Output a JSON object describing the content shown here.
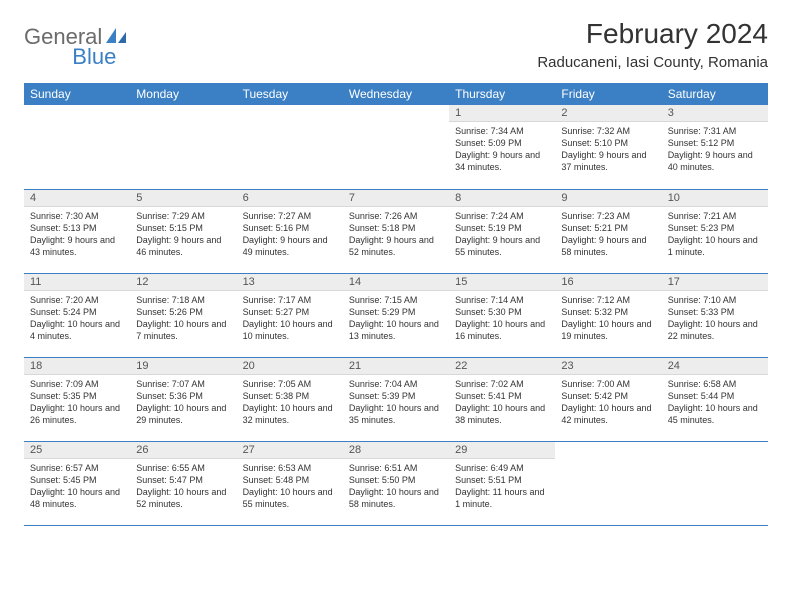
{
  "logo": {
    "part1": "General",
    "part2": "Blue"
  },
  "title": "February 2024",
  "location": "Raducaneni, Iasi County, Romania",
  "colors": {
    "header_bg": "#3b7fc4",
    "header_fg": "#ffffff",
    "daynum_bg": "#ededed",
    "page_bg": "#ffffff",
    "text": "#333333",
    "logo_grey": "#6b6b6b",
    "logo_blue": "#3b7fc4"
  },
  "day_headers": [
    "Sunday",
    "Monday",
    "Tuesday",
    "Wednesday",
    "Thursday",
    "Friday",
    "Saturday"
  ],
  "weeks": [
    [
      null,
      null,
      null,
      null,
      {
        "n": "1",
        "sr": "7:34 AM",
        "ss": "5:09 PM",
        "dl": "9 hours and 34 minutes."
      },
      {
        "n": "2",
        "sr": "7:32 AM",
        "ss": "5:10 PM",
        "dl": "9 hours and 37 minutes."
      },
      {
        "n": "3",
        "sr": "7:31 AM",
        "ss": "5:12 PM",
        "dl": "9 hours and 40 minutes."
      }
    ],
    [
      {
        "n": "4",
        "sr": "7:30 AM",
        "ss": "5:13 PM",
        "dl": "9 hours and 43 minutes."
      },
      {
        "n": "5",
        "sr": "7:29 AM",
        "ss": "5:15 PM",
        "dl": "9 hours and 46 minutes."
      },
      {
        "n": "6",
        "sr": "7:27 AM",
        "ss": "5:16 PM",
        "dl": "9 hours and 49 minutes."
      },
      {
        "n": "7",
        "sr": "7:26 AM",
        "ss": "5:18 PM",
        "dl": "9 hours and 52 minutes."
      },
      {
        "n": "8",
        "sr": "7:24 AM",
        "ss": "5:19 PM",
        "dl": "9 hours and 55 minutes."
      },
      {
        "n": "9",
        "sr": "7:23 AM",
        "ss": "5:21 PM",
        "dl": "9 hours and 58 minutes."
      },
      {
        "n": "10",
        "sr": "7:21 AM",
        "ss": "5:23 PM",
        "dl": "10 hours and 1 minute."
      }
    ],
    [
      {
        "n": "11",
        "sr": "7:20 AM",
        "ss": "5:24 PM",
        "dl": "10 hours and 4 minutes."
      },
      {
        "n": "12",
        "sr": "7:18 AM",
        "ss": "5:26 PM",
        "dl": "10 hours and 7 minutes."
      },
      {
        "n": "13",
        "sr": "7:17 AM",
        "ss": "5:27 PM",
        "dl": "10 hours and 10 minutes."
      },
      {
        "n": "14",
        "sr": "7:15 AM",
        "ss": "5:29 PM",
        "dl": "10 hours and 13 minutes."
      },
      {
        "n": "15",
        "sr": "7:14 AM",
        "ss": "5:30 PM",
        "dl": "10 hours and 16 minutes."
      },
      {
        "n": "16",
        "sr": "7:12 AM",
        "ss": "5:32 PM",
        "dl": "10 hours and 19 minutes."
      },
      {
        "n": "17",
        "sr": "7:10 AM",
        "ss": "5:33 PM",
        "dl": "10 hours and 22 minutes."
      }
    ],
    [
      {
        "n": "18",
        "sr": "7:09 AM",
        "ss": "5:35 PM",
        "dl": "10 hours and 26 minutes."
      },
      {
        "n": "19",
        "sr": "7:07 AM",
        "ss": "5:36 PM",
        "dl": "10 hours and 29 minutes."
      },
      {
        "n": "20",
        "sr": "7:05 AM",
        "ss": "5:38 PM",
        "dl": "10 hours and 32 minutes."
      },
      {
        "n": "21",
        "sr": "7:04 AM",
        "ss": "5:39 PM",
        "dl": "10 hours and 35 minutes."
      },
      {
        "n": "22",
        "sr": "7:02 AM",
        "ss": "5:41 PM",
        "dl": "10 hours and 38 minutes."
      },
      {
        "n": "23",
        "sr": "7:00 AM",
        "ss": "5:42 PM",
        "dl": "10 hours and 42 minutes."
      },
      {
        "n": "24",
        "sr": "6:58 AM",
        "ss": "5:44 PM",
        "dl": "10 hours and 45 minutes."
      }
    ],
    [
      {
        "n": "25",
        "sr": "6:57 AM",
        "ss": "5:45 PM",
        "dl": "10 hours and 48 minutes."
      },
      {
        "n": "26",
        "sr": "6:55 AM",
        "ss": "5:47 PM",
        "dl": "10 hours and 52 minutes."
      },
      {
        "n": "27",
        "sr": "6:53 AM",
        "ss": "5:48 PM",
        "dl": "10 hours and 55 minutes."
      },
      {
        "n": "28",
        "sr": "6:51 AM",
        "ss": "5:50 PM",
        "dl": "10 hours and 58 minutes."
      },
      {
        "n": "29",
        "sr": "6:49 AM",
        "ss": "5:51 PM",
        "dl": "11 hours and 1 minute."
      },
      null,
      null
    ]
  ],
  "labels": {
    "sunrise": "Sunrise: ",
    "sunset": "Sunset: ",
    "daylight": "Daylight: "
  }
}
